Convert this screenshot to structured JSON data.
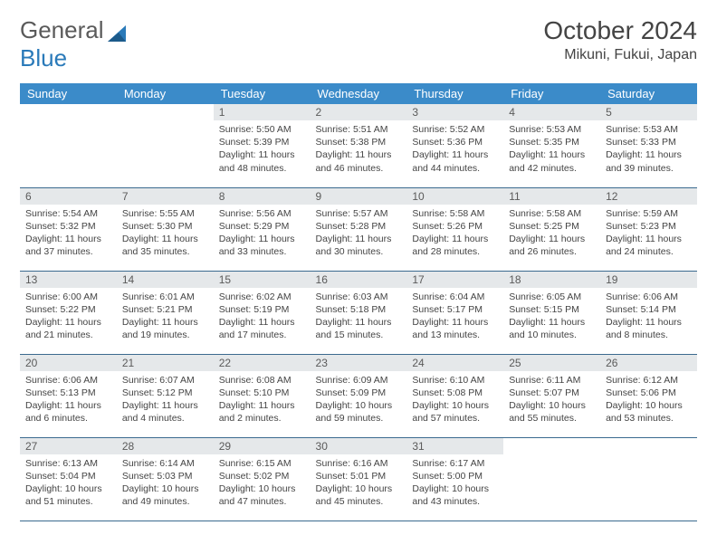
{
  "logo": {
    "text1": "General",
    "text2": "Blue"
  },
  "title": "October 2024",
  "location": "Mikuni, Fukui, Japan",
  "colors": {
    "header_bg": "#3b8bc9",
    "header_text": "#ffffff",
    "daynum_bg": "#e5e8ea",
    "daynum_text": "#5a5a5a",
    "body_text": "#444444",
    "border": "#3b6a8f",
    "logo_gray": "#5a5a5a",
    "logo_blue": "#2a7ab9"
  },
  "weekdays": [
    "Sunday",
    "Monday",
    "Tuesday",
    "Wednesday",
    "Thursday",
    "Friday",
    "Saturday"
  ],
  "weeks": [
    [
      null,
      null,
      {
        "n": "1",
        "sunrise": "Sunrise: 5:50 AM",
        "sunset": "Sunset: 5:39 PM",
        "daylight": "Daylight: 11 hours and 48 minutes."
      },
      {
        "n": "2",
        "sunrise": "Sunrise: 5:51 AM",
        "sunset": "Sunset: 5:38 PM",
        "daylight": "Daylight: 11 hours and 46 minutes."
      },
      {
        "n": "3",
        "sunrise": "Sunrise: 5:52 AM",
        "sunset": "Sunset: 5:36 PM",
        "daylight": "Daylight: 11 hours and 44 minutes."
      },
      {
        "n": "4",
        "sunrise": "Sunrise: 5:53 AM",
        "sunset": "Sunset: 5:35 PM",
        "daylight": "Daylight: 11 hours and 42 minutes."
      },
      {
        "n": "5",
        "sunrise": "Sunrise: 5:53 AM",
        "sunset": "Sunset: 5:33 PM",
        "daylight": "Daylight: 11 hours and 39 minutes."
      }
    ],
    [
      {
        "n": "6",
        "sunrise": "Sunrise: 5:54 AM",
        "sunset": "Sunset: 5:32 PM",
        "daylight": "Daylight: 11 hours and 37 minutes."
      },
      {
        "n": "7",
        "sunrise": "Sunrise: 5:55 AM",
        "sunset": "Sunset: 5:30 PM",
        "daylight": "Daylight: 11 hours and 35 minutes."
      },
      {
        "n": "8",
        "sunrise": "Sunrise: 5:56 AM",
        "sunset": "Sunset: 5:29 PM",
        "daylight": "Daylight: 11 hours and 33 minutes."
      },
      {
        "n": "9",
        "sunrise": "Sunrise: 5:57 AM",
        "sunset": "Sunset: 5:28 PM",
        "daylight": "Daylight: 11 hours and 30 minutes."
      },
      {
        "n": "10",
        "sunrise": "Sunrise: 5:58 AM",
        "sunset": "Sunset: 5:26 PM",
        "daylight": "Daylight: 11 hours and 28 minutes."
      },
      {
        "n": "11",
        "sunrise": "Sunrise: 5:58 AM",
        "sunset": "Sunset: 5:25 PM",
        "daylight": "Daylight: 11 hours and 26 minutes."
      },
      {
        "n": "12",
        "sunrise": "Sunrise: 5:59 AM",
        "sunset": "Sunset: 5:23 PM",
        "daylight": "Daylight: 11 hours and 24 minutes."
      }
    ],
    [
      {
        "n": "13",
        "sunrise": "Sunrise: 6:00 AM",
        "sunset": "Sunset: 5:22 PM",
        "daylight": "Daylight: 11 hours and 21 minutes."
      },
      {
        "n": "14",
        "sunrise": "Sunrise: 6:01 AM",
        "sunset": "Sunset: 5:21 PM",
        "daylight": "Daylight: 11 hours and 19 minutes."
      },
      {
        "n": "15",
        "sunrise": "Sunrise: 6:02 AM",
        "sunset": "Sunset: 5:19 PM",
        "daylight": "Daylight: 11 hours and 17 minutes."
      },
      {
        "n": "16",
        "sunrise": "Sunrise: 6:03 AM",
        "sunset": "Sunset: 5:18 PM",
        "daylight": "Daylight: 11 hours and 15 minutes."
      },
      {
        "n": "17",
        "sunrise": "Sunrise: 6:04 AM",
        "sunset": "Sunset: 5:17 PM",
        "daylight": "Daylight: 11 hours and 13 minutes."
      },
      {
        "n": "18",
        "sunrise": "Sunrise: 6:05 AM",
        "sunset": "Sunset: 5:15 PM",
        "daylight": "Daylight: 11 hours and 10 minutes."
      },
      {
        "n": "19",
        "sunrise": "Sunrise: 6:06 AM",
        "sunset": "Sunset: 5:14 PM",
        "daylight": "Daylight: 11 hours and 8 minutes."
      }
    ],
    [
      {
        "n": "20",
        "sunrise": "Sunrise: 6:06 AM",
        "sunset": "Sunset: 5:13 PM",
        "daylight": "Daylight: 11 hours and 6 minutes."
      },
      {
        "n": "21",
        "sunrise": "Sunrise: 6:07 AM",
        "sunset": "Sunset: 5:12 PM",
        "daylight": "Daylight: 11 hours and 4 minutes."
      },
      {
        "n": "22",
        "sunrise": "Sunrise: 6:08 AM",
        "sunset": "Sunset: 5:10 PM",
        "daylight": "Daylight: 11 hours and 2 minutes."
      },
      {
        "n": "23",
        "sunrise": "Sunrise: 6:09 AM",
        "sunset": "Sunset: 5:09 PM",
        "daylight": "Daylight: 10 hours and 59 minutes."
      },
      {
        "n": "24",
        "sunrise": "Sunrise: 6:10 AM",
        "sunset": "Sunset: 5:08 PM",
        "daylight": "Daylight: 10 hours and 57 minutes."
      },
      {
        "n": "25",
        "sunrise": "Sunrise: 6:11 AM",
        "sunset": "Sunset: 5:07 PM",
        "daylight": "Daylight: 10 hours and 55 minutes."
      },
      {
        "n": "26",
        "sunrise": "Sunrise: 6:12 AM",
        "sunset": "Sunset: 5:06 PM",
        "daylight": "Daylight: 10 hours and 53 minutes."
      }
    ],
    [
      {
        "n": "27",
        "sunrise": "Sunrise: 6:13 AM",
        "sunset": "Sunset: 5:04 PM",
        "daylight": "Daylight: 10 hours and 51 minutes."
      },
      {
        "n": "28",
        "sunrise": "Sunrise: 6:14 AM",
        "sunset": "Sunset: 5:03 PM",
        "daylight": "Daylight: 10 hours and 49 minutes."
      },
      {
        "n": "29",
        "sunrise": "Sunrise: 6:15 AM",
        "sunset": "Sunset: 5:02 PM",
        "daylight": "Daylight: 10 hours and 47 minutes."
      },
      {
        "n": "30",
        "sunrise": "Sunrise: 6:16 AM",
        "sunset": "Sunset: 5:01 PM",
        "daylight": "Daylight: 10 hours and 45 minutes."
      },
      {
        "n": "31",
        "sunrise": "Sunrise: 6:17 AM",
        "sunset": "Sunset: 5:00 PM",
        "daylight": "Daylight: 10 hours and 43 minutes."
      },
      null,
      null
    ]
  ]
}
